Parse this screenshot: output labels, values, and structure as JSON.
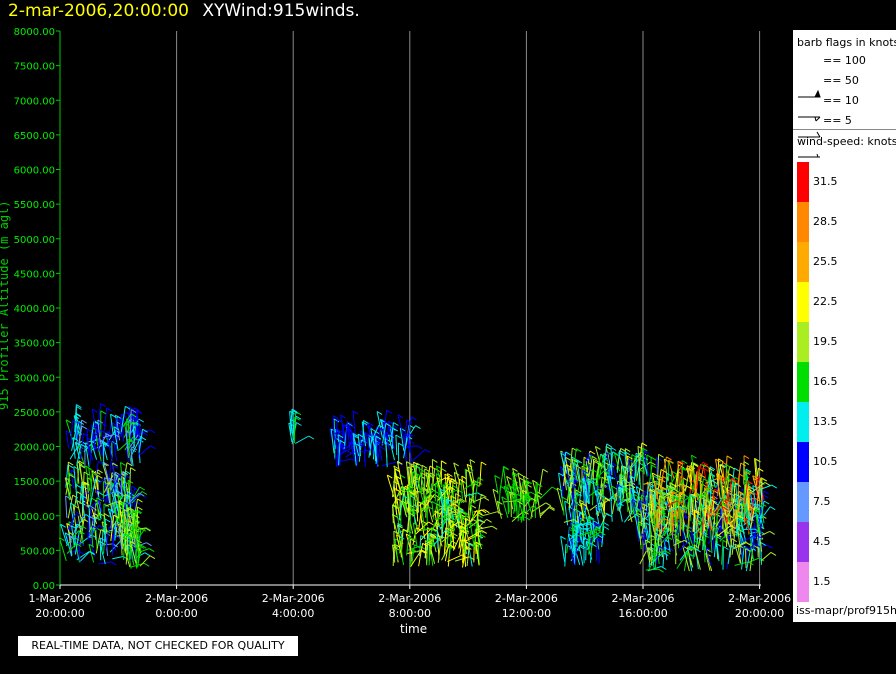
{
  "header": {
    "datetime": "2-mar-2006,20:00:00",
    "title": "XYWind:915winds."
  },
  "chart_data": {
    "type": "scatter",
    "ylabel": "915 Profiler Altitude (m agl)",
    "xlabel": "time",
    "ylim": [
      0,
      8000
    ],
    "yticks": [
      "0.00",
      "500.00",
      "1000.00",
      "1500.00",
      "2000.00",
      "2500.00",
      "3000.00",
      "3500.00",
      "4000.00",
      "4500.00",
      "5000.00",
      "5500.00",
      "6000.00",
      "6500.00",
      "7000.00",
      "7500.00",
      "8000.00"
    ],
    "xticks": [
      {
        "date": "1-Mar-2006",
        "time": "20:00:00"
      },
      {
        "date": "2-Mar-2006",
        "time": "0:00:00"
      },
      {
        "date": "2-Mar-2006",
        "time": "4:00:00"
      },
      {
        "date": "2-Mar-2006",
        "time": "8:00:00"
      },
      {
        "date": "2-Mar-2006",
        "time": "12:00:00"
      },
      {
        "date": "2-Mar-2006",
        "time": "16:00:00"
      },
      {
        "date": "2-Mar-2006",
        "time": "20:00:00"
      }
    ],
    "x_hours_range": [
      0,
      24
    ],
    "grid": "vertical lines at each x tick",
    "clusters": [
      {
        "t": [
          0.2,
          2.6
        ],
        "alt": [
          300,
          1500
        ],
        "speed": [
          8,
          22
        ]
      },
      {
        "t": [
          0.3,
          2.8
        ],
        "alt": [
          1700,
          2250
        ],
        "speed": [
          8,
          16
        ]
      },
      {
        "t": [
          2.1,
          2.8
        ],
        "alt": [
          200,
          900
        ],
        "speed": [
          15,
          21
        ]
      },
      {
        "t": [
          7.9,
          8.1
        ],
        "alt": [
          2000,
          2300
        ],
        "speed": [
          12,
          16
        ]
      },
      {
        "t": [
          9.3,
          12.1
        ],
        "alt": [
          1700,
          2150
        ],
        "speed": [
          9,
          14
        ]
      },
      {
        "t": [
          11.4,
          14.5
        ],
        "alt": [
          250,
          1450
        ],
        "speed": [
          14,
          24
        ]
      },
      {
        "t": [
          15.0,
          16.5
        ],
        "alt": [
          900,
          1350
        ],
        "speed": [
          16,
          19
        ]
      },
      {
        "t": [
          17.3,
          18.6
        ],
        "alt": [
          250,
          900
        ],
        "speed": [
          11,
          16
        ]
      },
      {
        "t": [
          17.2,
          20.5
        ],
        "alt": [
          900,
          1700
        ],
        "speed": [
          10,
          22
        ]
      },
      {
        "t": [
          19.8,
          24.1
        ],
        "alt": [
          200,
          1100
        ],
        "speed": [
          9,
          21
        ]
      },
      {
        "t": [
          20.3,
          24.2
        ],
        "alt": [
          700,
          1550
        ],
        "speed": [
          13,
          31
        ]
      }
    ]
  },
  "legend": {
    "barb_title": "barb flags in knots",
    "barb_rows": [
      "== 100",
      "== 50",
      "== 10",
      "== 5"
    ],
    "speed_title": "wind-speed: knots",
    "speed_labels": [
      "31.5",
      "28.5",
      "25.5",
      "22.5",
      "19.5",
      "16.5",
      "13.5",
      "10.5",
      "7.5",
      "4.5",
      "1.5"
    ],
    "speed_colors": [
      "#ff0000",
      "#ff8800",
      "#ffaa00",
      "#ffff00",
      "#aaee22",
      "#00dd00",
      "#00eeee",
      "#0000ff",
      "#6699ff",
      "#9933ee",
      "#ee88ee"
    ],
    "source": "iss-mapr/prof915h"
  },
  "notice": "REAL-TIME DATA, NOT CHECKED FOR QUALITY"
}
